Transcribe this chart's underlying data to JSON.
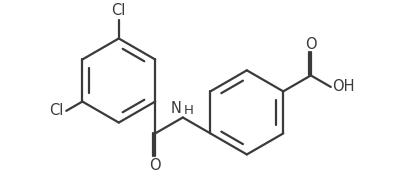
{
  "background": "#ffffff",
  "line_color": "#3a3a3a",
  "line_width": 1.6,
  "font_size": 10.5,
  "figsize": [
    4.12,
    1.76
  ],
  "dpi": 100,
  "xlim": [
    -0.05,
    4.12
  ],
  "ylim": [
    -0.05,
    1.76
  ]
}
